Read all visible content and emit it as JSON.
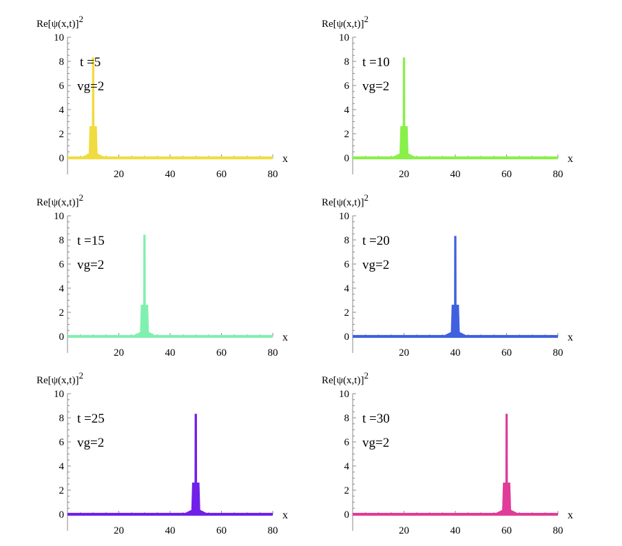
{
  "chart_data": [
    {
      "type": "area",
      "ylabel": "Re[ψ(x,t)]",
      "ylabel_sup": "2",
      "xlabel": "x",
      "annotation_t": "t =5",
      "annotation_vg": "vg=2",
      "t": 5,
      "vg": 2,
      "peak_center": 10,
      "peak_height": 8.3,
      "shoulder_height": 2.6,
      "xlim": [
        0,
        80
      ],
      "ylim": [
        0,
        10
      ],
      "xticks": [
        20,
        40,
        60,
        80
      ],
      "yticks": [
        0,
        2,
        4,
        6,
        8,
        10
      ],
      "color": "#f0dc40"
    },
    {
      "type": "area",
      "ylabel": "Re[ψ(x,t)]",
      "ylabel_sup": "2",
      "xlabel": "x",
      "annotation_t": "t =10",
      "annotation_vg": "vg=2",
      "t": 10,
      "vg": 2,
      "peak_center": 20,
      "peak_height": 8.3,
      "shoulder_height": 2.6,
      "xlim": [
        0,
        80
      ],
      "ylim": [
        0,
        10
      ],
      "xticks": [
        20,
        40,
        60,
        80
      ],
      "yticks": [
        0,
        2,
        4,
        6,
        8,
        10
      ],
      "color": "#88f048"
    },
    {
      "type": "area",
      "ylabel": "Re[ψ(x,t)]",
      "ylabel_sup": "2",
      "xlabel": "x",
      "annotation_t": "t =15",
      "annotation_vg": "vg=2",
      "t": 15,
      "vg": 2,
      "peak_center": 30,
      "peak_height": 8.4,
      "shoulder_height": 2.6,
      "xlim": [
        0,
        80
      ],
      "ylim": [
        0,
        10
      ],
      "xticks": [
        20,
        40,
        60,
        80
      ],
      "yticks": [
        0,
        2,
        4,
        6,
        8,
        10
      ],
      "color": "#80f0b0"
    },
    {
      "type": "area",
      "ylabel": "Re[ψ(x,t)]",
      "ylabel_sup": "2",
      "xlabel": "x",
      "annotation_t": "t =20",
      "annotation_vg": "vg=2",
      "t": 20,
      "vg": 2,
      "peak_center": 40,
      "peak_height": 8.3,
      "shoulder_height": 2.6,
      "xlim": [
        0,
        80
      ],
      "ylim": [
        0,
        10
      ],
      "xticks": [
        20,
        40,
        60,
        80
      ],
      "yticks": [
        0,
        2,
        4,
        6,
        8,
        10
      ],
      "color": "#4060e0"
    },
    {
      "type": "area",
      "ylabel": "Re[ψ(x,t)]",
      "ylabel_sup": "2",
      "xlabel": "x",
      "annotation_t": "t =25",
      "annotation_vg": "vg=2",
      "t": 25,
      "vg": 2,
      "peak_center": 50,
      "peak_height": 8.3,
      "shoulder_height": 2.6,
      "xlim": [
        0,
        80
      ],
      "ylim": [
        0,
        10
      ],
      "xticks": [
        20,
        40,
        60,
        80
      ],
      "yticks": [
        0,
        2,
        4,
        6,
        8,
        10
      ],
      "color": "#7020e8"
    },
    {
      "type": "area",
      "ylabel": "Re[ψ(x,t)]",
      "ylabel_sup": "2",
      "xlabel": "x",
      "annotation_t": "t =30",
      "annotation_vg": "vg=2",
      "t": 30,
      "vg": 2,
      "peak_center": 60,
      "peak_height": 8.3,
      "shoulder_height": 2.6,
      "xlim": [
        0,
        80
      ],
      "ylim": [
        0,
        10
      ],
      "xticks": [
        20,
        40,
        60,
        80
      ],
      "yticks": [
        0,
        2,
        4,
        6,
        8,
        10
      ],
      "color": "#e03c98"
    }
  ]
}
